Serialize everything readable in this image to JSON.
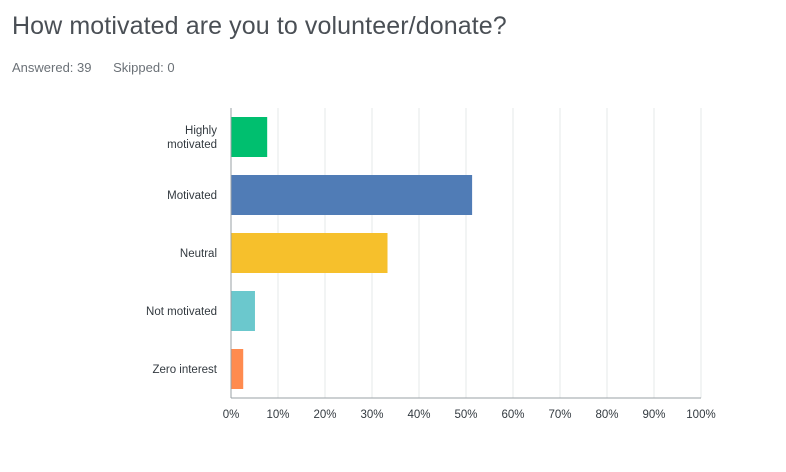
{
  "question": {
    "title": "How motivated are you to volunteer/donate?",
    "answered_label": "Answered: 39",
    "skipped_label": "Skipped: 0"
  },
  "chart_data": {
    "type": "bar",
    "orientation": "horizontal",
    "categories": [
      [
        "Highly",
        "motivated"
      ],
      [
        "Motivated"
      ],
      [
        "Neutral"
      ],
      [
        "Not motivated"
      ],
      [
        "Zero interest"
      ]
    ],
    "values": [
      7.7,
      51.3,
      33.3,
      5.1,
      2.6
    ],
    "colors": [
      "#00bf6f",
      "#507cb6",
      "#f6c02c",
      "#6bc8cd",
      "#ff8b4f"
    ],
    "xlim": [
      0,
      100
    ],
    "x_ticks": [
      "0%",
      "10%",
      "20%",
      "30%",
      "40%",
      "50%",
      "60%",
      "70%",
      "80%",
      "90%",
      "100%"
    ],
    "grid": true,
    "legend": "none"
  }
}
